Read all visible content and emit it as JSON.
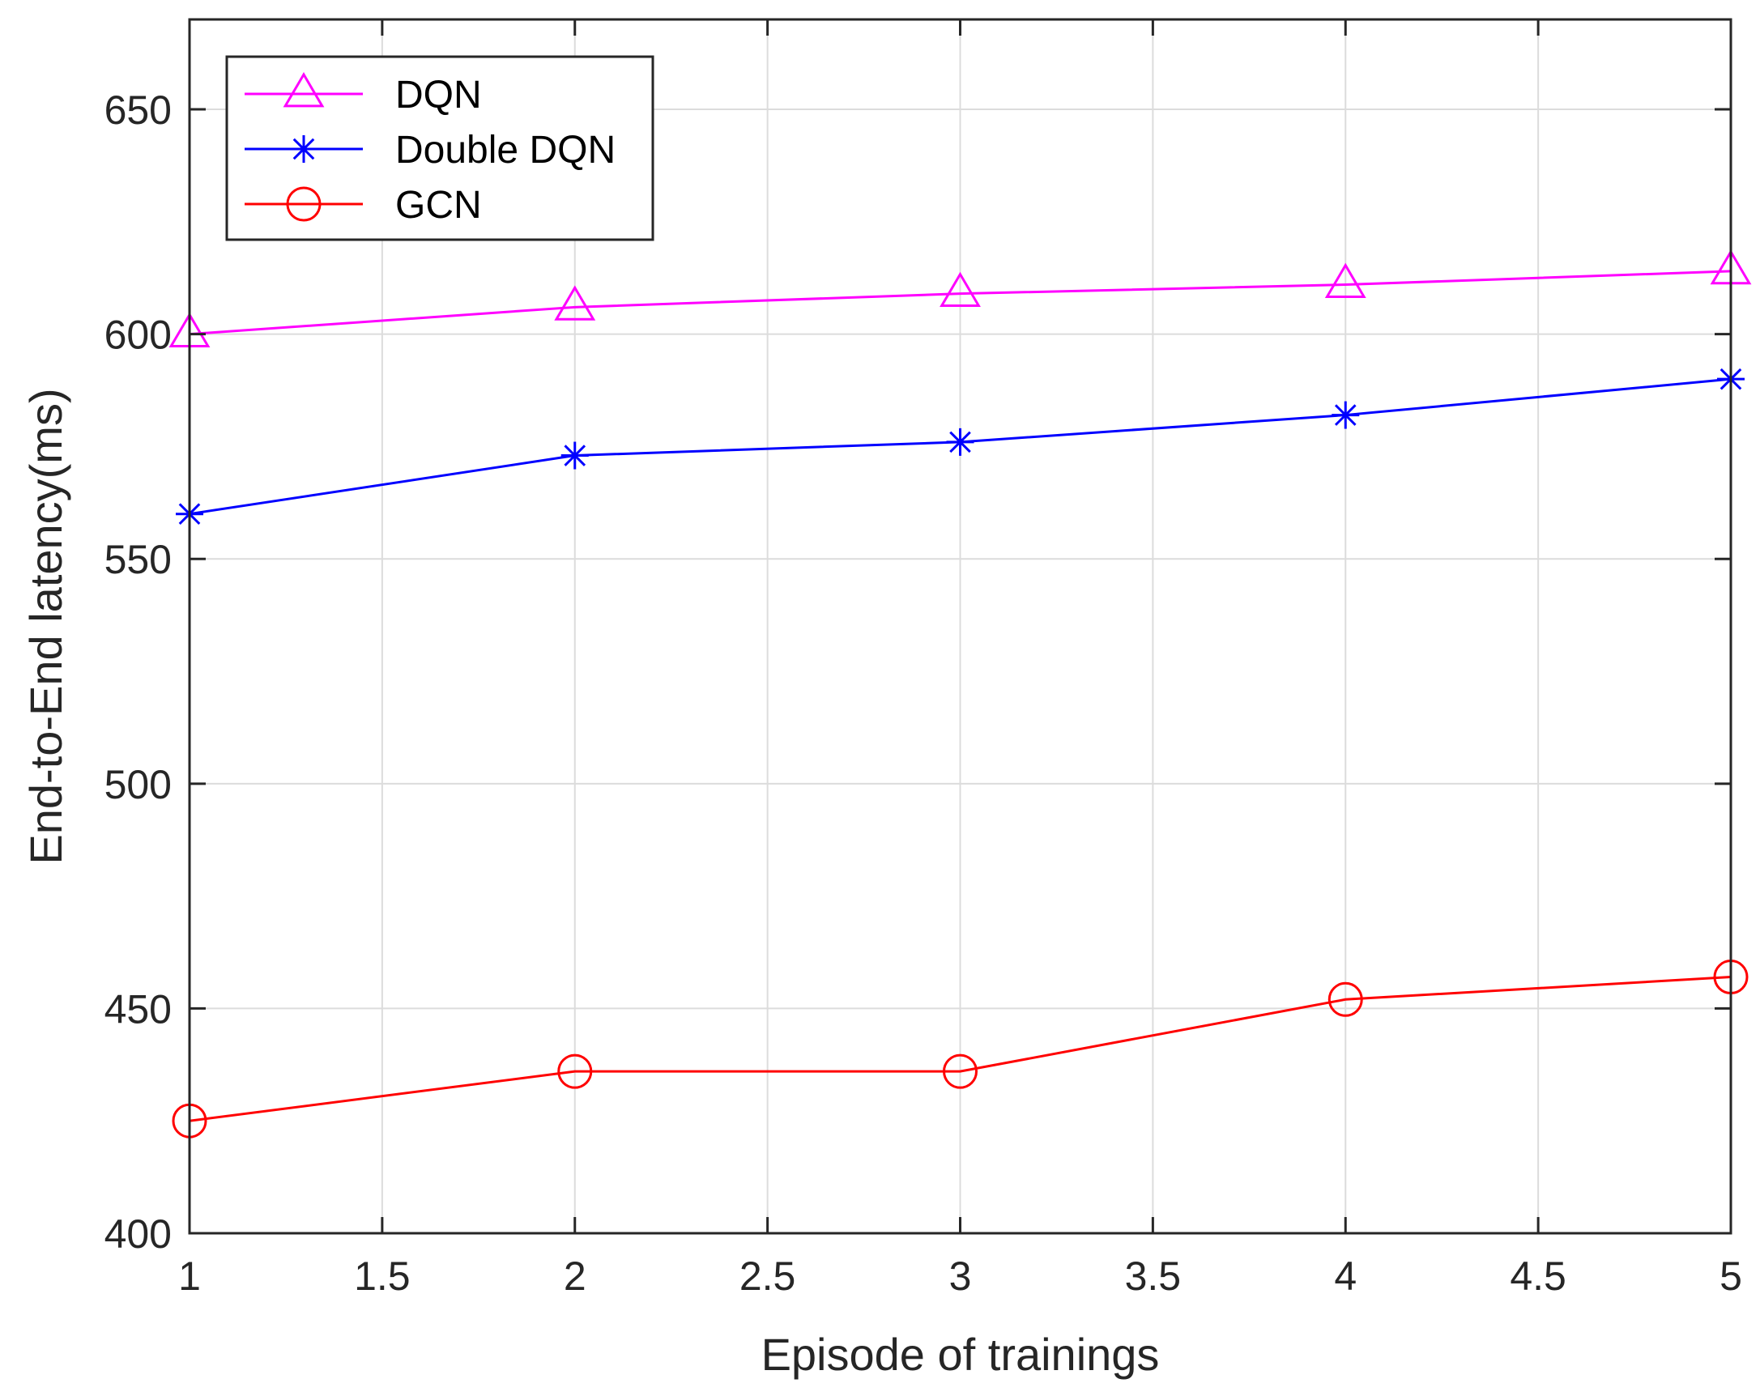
{
  "chart_data": {
    "type": "line",
    "title": "",
    "xlabel": "Episode of trainings",
    "ylabel": "End-to-End latency(ms)",
    "xlim": [
      1,
      5
    ],
    "ylim": [
      400,
      670
    ],
    "xticks": [
      1,
      1.5,
      2,
      2.5,
      3,
      3.5,
      4,
      4.5,
      5
    ],
    "xtick_labels": [
      "1",
      "1.5",
      "2",
      "2.5",
      "3",
      "3.5",
      "4",
      "4.5",
      "5"
    ],
    "yticks": [
      400,
      450,
      500,
      550,
      600,
      650
    ],
    "ytick_labels": [
      "400",
      "450",
      "500",
      "550",
      "600",
      "650"
    ],
    "grid": true,
    "legend_position": "top-left",
    "x": [
      1,
      2,
      3,
      4,
      5
    ],
    "series": [
      {
        "name": "DQN",
        "color": "#ff00ff",
        "marker": "triangle",
        "values": [
          600,
          606,
          609,
          611,
          614
        ]
      },
      {
        "name": "Double DQN",
        "color": "#0000ff",
        "marker": "asterisk",
        "values": [
          560,
          573,
          576,
          582,
          590
        ]
      },
      {
        "name": "GCN",
        "color": "#ff0000",
        "marker": "circle",
        "values": [
          425,
          436,
          436,
          452,
          457
        ]
      }
    ]
  }
}
